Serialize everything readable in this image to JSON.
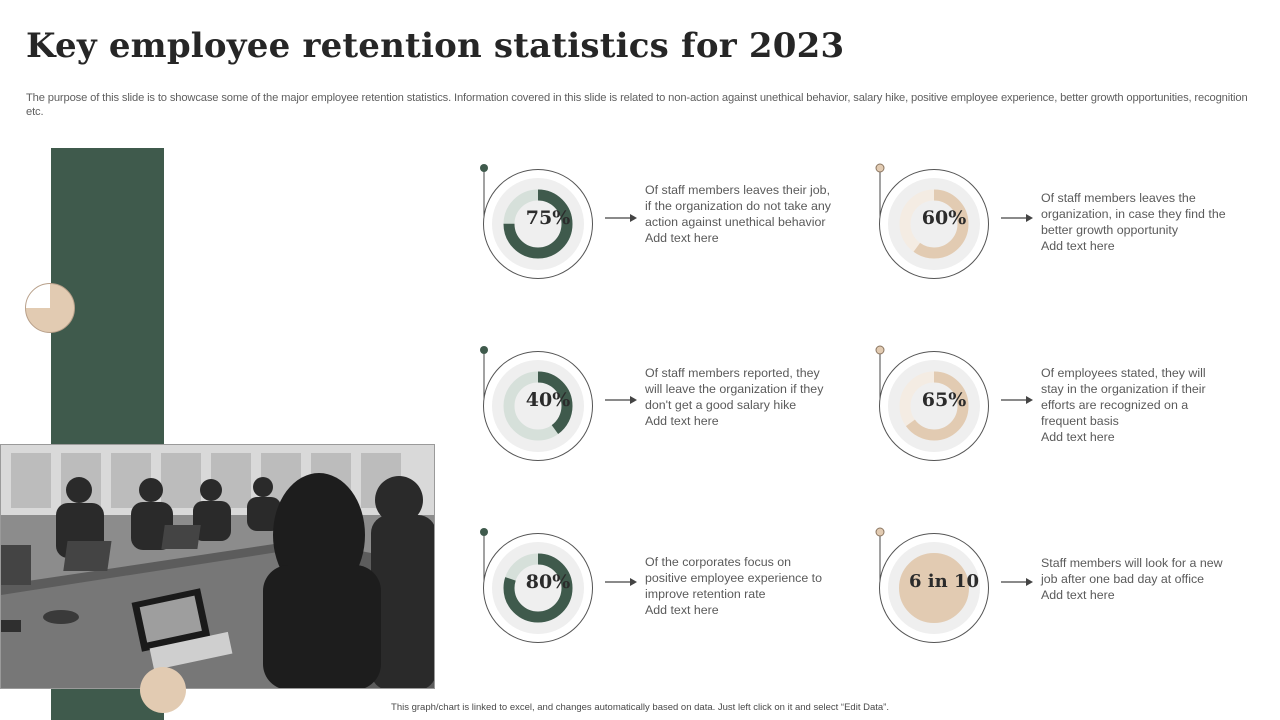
{
  "title": "Key employee retention statistics for 2023",
  "subtitle": "The purpose of this slide is to showcase some of the major employee retention statistics. Information covered in this slide is related to non-action against unethical behavior, salary hike, positive employee experience, better growth opportunities, recognition etc.",
  "colors": {
    "green": "#3f5a4c",
    "green_track": "#d6e0da",
    "beige": "#e2cbb2",
    "beige_track": "#f4ece3",
    "inner_disc": "#efefef"
  },
  "stats": [
    {
      "value": "75%",
      "percent": 75,
      "theme": "green",
      "desc_line1": "Of staff members leaves their job, if the organization do not take any action against unethical behavior",
      "desc_line2": "Add text here"
    },
    {
      "value": "60%",
      "percent": 60,
      "theme": "beige",
      "desc_line1": "Of staff members leaves the organization, in case they find the better growth opportunity",
      "desc_line2": "Add text here"
    },
    {
      "value": "40%",
      "percent": 40,
      "theme": "green",
      "desc_line1": "Of staff members reported, they will leave the organization if they don't get a good salary hike",
      "desc_line2": "Add text here"
    },
    {
      "value": "65%",
      "percent": 65,
      "theme": "beige",
      "desc_line1": "Of employees stated, they will stay in the organization if their efforts are recognized on a frequent basis",
      "desc_line2": "Add text here"
    },
    {
      "value": "80%",
      "percent": 80,
      "theme": "green",
      "desc_line1": "Of the corporates focus on positive employee experience to improve retention rate",
      "desc_line2": "Add text here"
    },
    {
      "value": "6 in 10",
      "percent": 100,
      "theme": "beige-solid",
      "desc_line1": "Staff members will look for a new job after one bad day at office",
      "desc_line2": "Add text here"
    }
  ],
  "footer": "This graph/chart is linked to excel, and changes automatically based on data. Just left click on it and select “Edit Data”."
}
